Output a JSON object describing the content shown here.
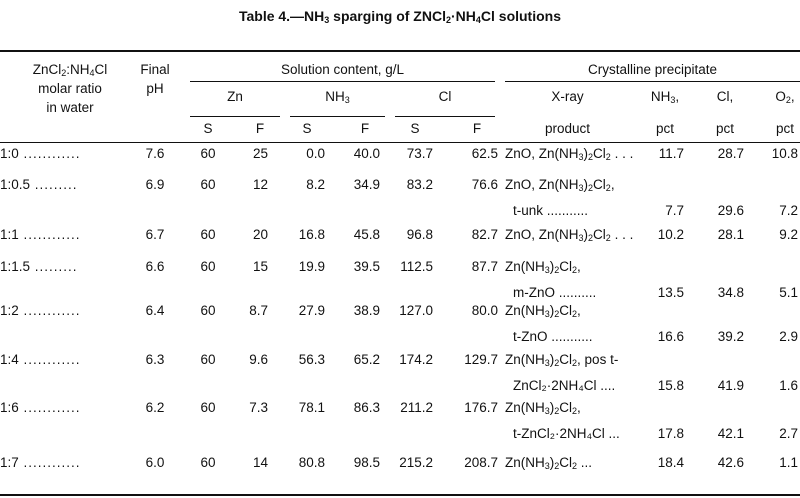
{
  "title_parts": {
    "a": "Table 4.—NH",
    "b": "3",
    "c": " sparging of ZNCl",
    "d": "2",
    "e": "·NH",
    "f": "4",
    "g": "Cl solutions"
  },
  "headers": {
    "ratio": {
      "l1a": "ZnCl",
      "l1b": "2",
      "l1c": ":NH",
      "l1d": "4",
      "l1e": "Cl",
      "l2": "molar ratio",
      "l3": "in water"
    },
    "final_ph": {
      "l1": "Final",
      "l2": "pH"
    },
    "solution_content": "Solution content, g/L",
    "zn": "Zn",
    "nh3": {
      "a": "NH",
      "b": "3"
    },
    "cl": "Cl",
    "s": "S",
    "f": "F",
    "crystalline": "Crystalline precipitate",
    "xray": {
      "l1": "X-ray",
      "l2": "product"
    },
    "nh3pct": {
      "a": "NH",
      "b": "3",
      "c": ",",
      "l2": "pct"
    },
    "clpct": {
      "l1": "Cl,",
      "l2": "pct"
    },
    "o2pct": {
      "a": "O",
      "b": "2",
      "c": ",",
      "l2": "pct"
    }
  },
  "rows": [
    {
      "ratio": "1:0",
      "dots": " ............",
      "ph": "7.6",
      "zn_s": "60",
      "zn_f": "25",
      "nh3_s": "0.0",
      "nh3_f": "40.0",
      "cl_s": "73.7",
      "cl_f": "62.5",
      "x1": "ZnO, Zn(NH",
      "x1s": "3",
      "x1b": ")",
      "x1s2": "2",
      "x1c": "Cl",
      "x1s3": "2",
      "x1d": " . . .",
      "x2": "",
      "nh3": "11.7",
      "cl": "28.7",
      "o2": "10.8"
    },
    {
      "ratio": "1:0.5",
      "dots": " .........",
      "ph": "6.9",
      "zn_s": "60",
      "zn_f": "12",
      "nh3_s": "8.2",
      "nh3_f": "34.9",
      "cl_s": "83.2",
      "cl_f": "76.6",
      "x1": "ZnO, Zn(NH",
      "x1s": "3",
      "x1b": ")",
      "x1s2": "2",
      "x1c": "Cl",
      "x1s3": "2",
      "x1d": ",",
      "x2": "t-unk ...........",
      "nh3": "7.7",
      "cl": "29.6",
      "o2": "7.2"
    },
    {
      "ratio": "1:1",
      "dots": " ............",
      "ph": "6.7",
      "zn_s": "60",
      "zn_f": "20",
      "nh3_s": "16.8",
      "nh3_f": "45.8",
      "cl_s": "96.8",
      "cl_f": "82.7",
      "x1": "ZnO, Zn(NH",
      "x1s": "3",
      "x1b": ")",
      "x1s2": "2",
      "x1c": "Cl",
      "x1s3": "2",
      "x1d": " . . .",
      "x2": "",
      "nh3": "10.2",
      "cl": "28.1",
      "o2": "9.2"
    },
    {
      "ratio": "1:1.5",
      "dots": " .........",
      "ph": "6.6",
      "zn_s": "60",
      "zn_f": "15",
      "nh3_s": "19.9",
      "nh3_f": "39.5",
      "cl_s": "112.5",
      "cl_f": "87.7",
      "x1": "Zn(NH",
      "x1s": "3",
      "x1b": ")",
      "x1s2": "2",
      "x1c": "Cl",
      "x1s3": "2",
      "x1d": ",",
      "x2": "m-ZnO ..........",
      "nh3": "13.5",
      "cl": "34.8",
      "o2": "5.1"
    },
    {
      "ratio": "1:2",
      "dots": " ............",
      "ph": "6.4",
      "zn_s": "60",
      "zn_f": "8.7",
      "nh3_s": "27.9",
      "nh3_f": "38.9",
      "cl_s": "127.0",
      "cl_f": "80.0",
      "x1": "Zn(NH",
      "x1s": "3",
      "x1b": ")",
      "x1s2": "2",
      "x1c": "Cl",
      "x1s3": "2",
      "x1d": ",",
      "x2": "t-ZnO ...........",
      "nh3": "16.6",
      "cl": "39.2",
      "o2": "2.9"
    },
    {
      "ratio": "1:4",
      "dots": " ............",
      "ph": "6.3",
      "zn_s": "60",
      "zn_f": "9.6",
      "nh3_s": "56.3",
      "nh3_f": "65.2",
      "cl_s": "174.2",
      "cl_f": "129.7",
      "x1": "Zn(NH",
      "x1s": "3",
      "x1b": ")",
      "x1s2": "2",
      "x1c": "Cl",
      "x1s3": "2",
      "x1d": ", pos t-",
      "x2": "ZnCl₂·2NH₄Cl ....",
      "nh3": "15.8",
      "cl": "41.9",
      "o2": "1.6"
    },
    {
      "ratio": "1:6",
      "dots": " ............",
      "ph": "6.2",
      "zn_s": "60",
      "zn_f": "7.3",
      "nh3_s": "78.1",
      "nh3_f": "86.3",
      "cl_s": "211.2",
      "cl_f": "176.7",
      "x1": "Zn(NH",
      "x1s": "3",
      "x1b": ")",
      "x1s2": "2",
      "x1c": "Cl",
      "x1s3": "2",
      "x1d": ",",
      "x2": "t-ZnCl₂·2NH₄Cl ...",
      "nh3": "17.8",
      "cl": "42.1",
      "o2": "2.7"
    },
    {
      "ratio": "1:7",
      "dots": " ............",
      "ph": "6.0",
      "zn_s": "60",
      "zn_f": "14",
      "nh3_s": "80.8",
      "nh3_f": "98.5",
      "cl_s": "215.2",
      "cl_f": "208.7",
      "x1": "Zn(NH",
      "x1s": "3",
      "x1b": ")",
      "x1s2": "2",
      "x1c": "Cl",
      "x1s3": "2",
      "x1d": " ...",
      "x2": "",
      "nh3": "18.4",
      "cl": "42.6",
      "o2": "1.1"
    }
  ]
}
